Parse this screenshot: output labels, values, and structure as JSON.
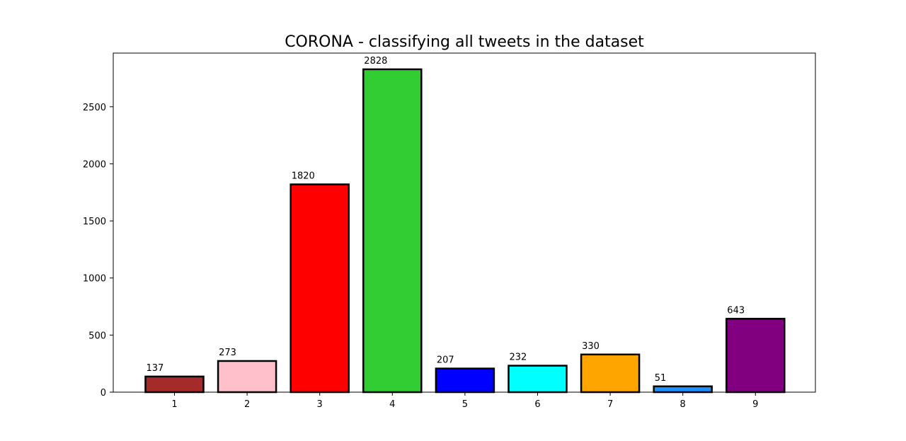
{
  "chart_data": {
    "type": "bar",
    "title": "CORONA - classifying all tweets in the dataset",
    "xlabel": "",
    "ylabel": "",
    "categories": [
      "1",
      "2",
      "3",
      "4",
      "5",
      "6",
      "7",
      "8",
      "9"
    ],
    "values": [
      137,
      273,
      1820,
      2828,
      207,
      232,
      330,
      51,
      643
    ],
    "data_labels": [
      "137",
      "273",
      "1820",
      "2828",
      "207",
      "232",
      "330",
      "51",
      "643"
    ],
    "bar_colors": [
      "#a52a2a",
      "#ffc0cb",
      "#ff0000",
      "#32cd32",
      "#0000ff",
      "#00ffff",
      "#ffa500",
      "#1e90ff",
      "#800080"
    ],
    "bar_edge_color": "#000000",
    "ylim": [
      0,
      2970
    ],
    "yticks": [
      0,
      500,
      1000,
      1500,
      2000,
      2500
    ],
    "ytick_labels": [
      "0",
      "500",
      "1000",
      "1500",
      "2000",
      "2500"
    ],
    "grid": false,
    "legend": "none"
  }
}
